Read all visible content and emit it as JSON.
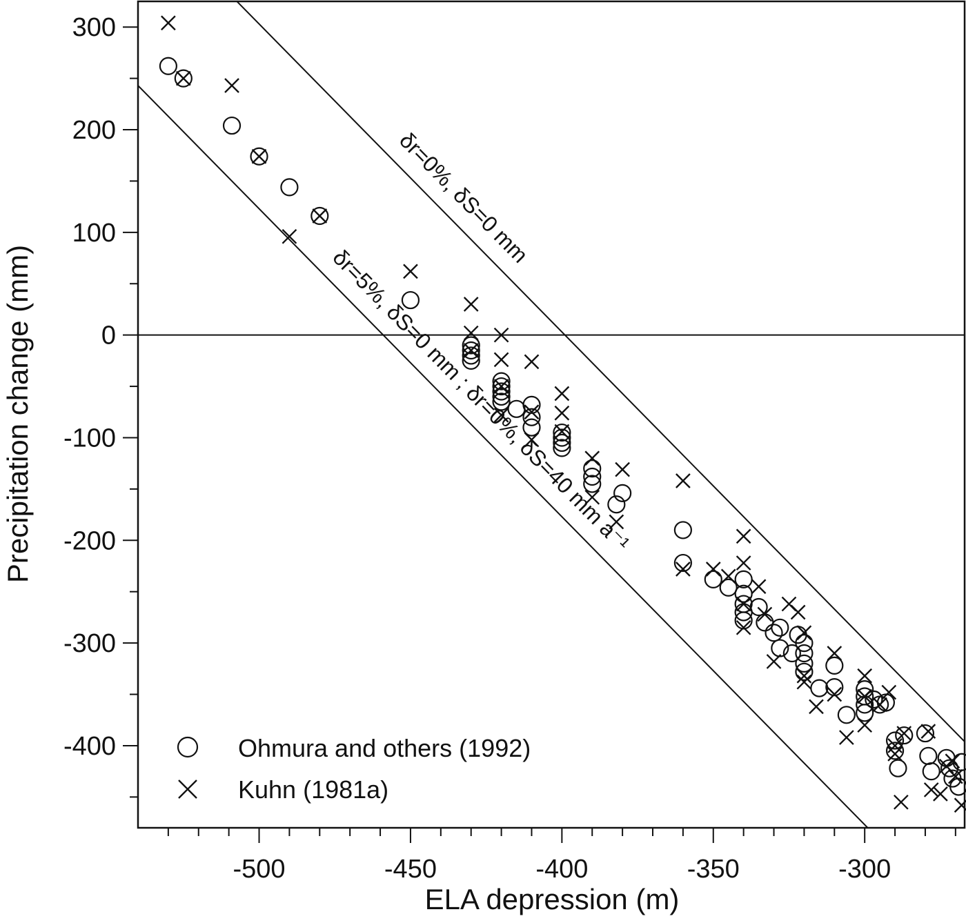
{
  "chart_data": {
    "type": "scatter",
    "xlabel": "ELA depression (m)",
    "ylabel": "Precipitation change (mm)",
    "xlim": [
      -540,
      -267
    ],
    "ylim": [
      -480,
      325
    ],
    "x_ticks_major": [
      -500,
      -450,
      -400,
      -350,
      -300
    ],
    "x_ticks_minor": [
      -530,
      -520,
      -510,
      -490,
      -480,
      -470,
      -460,
      -440,
      -430,
      -420,
      -410,
      -390,
      -380,
      -370,
      -360,
      -340,
      -330,
      -320,
      -310,
      -290,
      -280,
      -270
    ],
    "y_ticks_major": [
      300,
      200,
      100,
      0,
      -100,
      -200,
      -300,
      -400
    ],
    "y_ticks_minor": [
      250,
      150,
      50,
      -50,
      -150,
      -250,
      -350,
      -450
    ],
    "legend_position": "bottom-left",
    "legend": [
      {
        "marker": "circle",
        "label": "Ohmura and others (1992)"
      },
      {
        "marker": "cross",
        "label": "Kuhn (1981a)"
      }
    ],
    "reference_lines": [
      {
        "label": "δr=0%, δS=0 mm",
        "slope_mm_per_m": 3.0,
        "x_intercept": -399
      },
      {
        "label": "δr=5%, δS=0 mm ; δr=0%, δS=40 mm a⁻¹",
        "slope_mm_per_m": 3.0,
        "x_intercept": -459
      },
      {
        "label": "",
        "y": 0
      }
    ],
    "series": [
      {
        "name": "Ohmura and others (1992)",
        "marker": "circle",
        "points": [
          [
            -530,
            262
          ],
          [
            -525,
            250
          ],
          [
            -509,
            204
          ],
          [
            -500,
            174
          ],
          [
            -490,
            144
          ],
          [
            -480,
            116
          ],
          [
            -450,
            34
          ],
          [
            -430,
            -10
          ],
          [
            -430,
            -15
          ],
          [
            -430,
            -20
          ],
          [
            -430,
            -25
          ],
          [
            -420,
            -45
          ],
          [
            -420,
            -50
          ],
          [
            -420,
            -55
          ],
          [
            -420,
            -60
          ],
          [
            -420,
            -65
          ],
          [
            -415,
            -72
          ],
          [
            -410,
            -68
          ],
          [
            -410,
            -80
          ],
          [
            -410,
            -90
          ],
          [
            -400,
            -95
          ],
          [
            -400,
            -100
          ],
          [
            -400,
            -105
          ],
          [
            -400,
            -110
          ],
          [
            -390,
            -130
          ],
          [
            -390,
            -138
          ],
          [
            -390,
            -145
          ],
          [
            -382,
            -165
          ],
          [
            -380,
            -154
          ],
          [
            -360,
            -190
          ],
          [
            -360,
            -222
          ],
          [
            -350,
            -238
          ],
          [
            -345,
            -246
          ],
          [
            -340,
            -238
          ],
          [
            -340,
            -252
          ],
          [
            -340,
            -262
          ],
          [
            -340,
            -270
          ],
          [
            -340,
            -278
          ],
          [
            -335,
            -265
          ],
          [
            -333,
            -280
          ],
          [
            -330,
            -290
          ],
          [
            -328,
            -285
          ],
          [
            -328,
            -305
          ],
          [
            -324,
            -310
          ],
          [
            -322,
            -292
          ],
          [
            -320,
            -300
          ],
          [
            -320,
            -310
          ],
          [
            -320,
            -320
          ],
          [
            -320,
            -328
          ],
          [
            -315,
            -344
          ],
          [
            -310,
            -322
          ],
          [
            -310,
            -343
          ],
          [
            -306,
            -370
          ],
          [
            -300,
            -345
          ],
          [
            -300,
            -352
          ],
          [
            -300,
            -360
          ],
          [
            -300,
            -368
          ],
          [
            -297,
            -355
          ],
          [
            -295,
            -360
          ],
          [
            -293,
            -358
          ],
          [
            -290,
            -395
          ],
          [
            -290,
            -405
          ],
          [
            -289,
            -422
          ],
          [
            -287,
            -390
          ],
          [
            -280,
            -388
          ],
          [
            -279,
            -410
          ],
          [
            -278,
            -425
          ],
          [
            -273,
            -412
          ],
          [
            -272,
            -422
          ],
          [
            -271,
            -432
          ],
          [
            -269,
            -440
          ],
          [
            -268,
            -416
          ]
        ]
      },
      {
        "name": "Kuhn (1981a)",
        "marker": "cross",
        "points": [
          [
            -530,
            304
          ],
          [
            -525,
            250
          ],
          [
            -509,
            243
          ],
          [
            -500,
            174
          ],
          [
            -490,
            96
          ],
          [
            -480,
            116
          ],
          [
            -450,
            62
          ],
          [
            -430,
            30
          ],
          [
            -430,
            2
          ],
          [
            -430,
            -15
          ],
          [
            -420,
            0
          ],
          [
            -420,
            -24
          ],
          [
            -420,
            -50
          ],
          [
            -420,
            -78
          ],
          [
            -410,
            -26
          ],
          [
            -410,
            -75
          ],
          [
            -410,
            -102
          ],
          [
            -400,
            -57
          ],
          [
            -400,
            -76
          ],
          [
            -400,
            -94
          ],
          [
            -390,
            -120
          ],
          [
            -390,
            -158
          ],
          [
            -382,
            -182
          ],
          [
            -380,
            -131
          ],
          [
            -360,
            -142
          ],
          [
            -360,
            -228
          ],
          [
            -350,
            -228
          ],
          [
            -345,
            -235
          ],
          [
            -340,
            -196
          ],
          [
            -340,
            -222
          ],
          [
            -340,
            -262
          ],
          [
            -340,
            -285
          ],
          [
            -335,
            -245
          ],
          [
            -333,
            -272
          ],
          [
            -330,
            -318
          ],
          [
            -325,
            -262
          ],
          [
            -322,
            -270
          ],
          [
            -320,
            -290
          ],
          [
            -320,
            -332
          ],
          [
            -320,
            -338
          ],
          [
            -316,
            -362
          ],
          [
            -310,
            -310
          ],
          [
            -310,
            -350
          ],
          [
            -306,
            -392
          ],
          [
            -300,
            -332
          ],
          [
            -300,
            -352
          ],
          [
            -300,
            -380
          ],
          [
            -295,
            -360
          ],
          [
            -292,
            -348
          ],
          [
            -290,
            -400
          ],
          [
            -290,
            -408
          ],
          [
            -288,
            -455
          ],
          [
            -287,
            -388
          ],
          [
            -279,
            -386
          ],
          [
            -278,
            -443
          ],
          [
            -275,
            -447
          ],
          [
            -273,
            -420
          ],
          [
            -271,
            -415
          ],
          [
            -270,
            -430
          ],
          [
            -268,
            -458
          ]
        ]
      }
    ]
  }
}
